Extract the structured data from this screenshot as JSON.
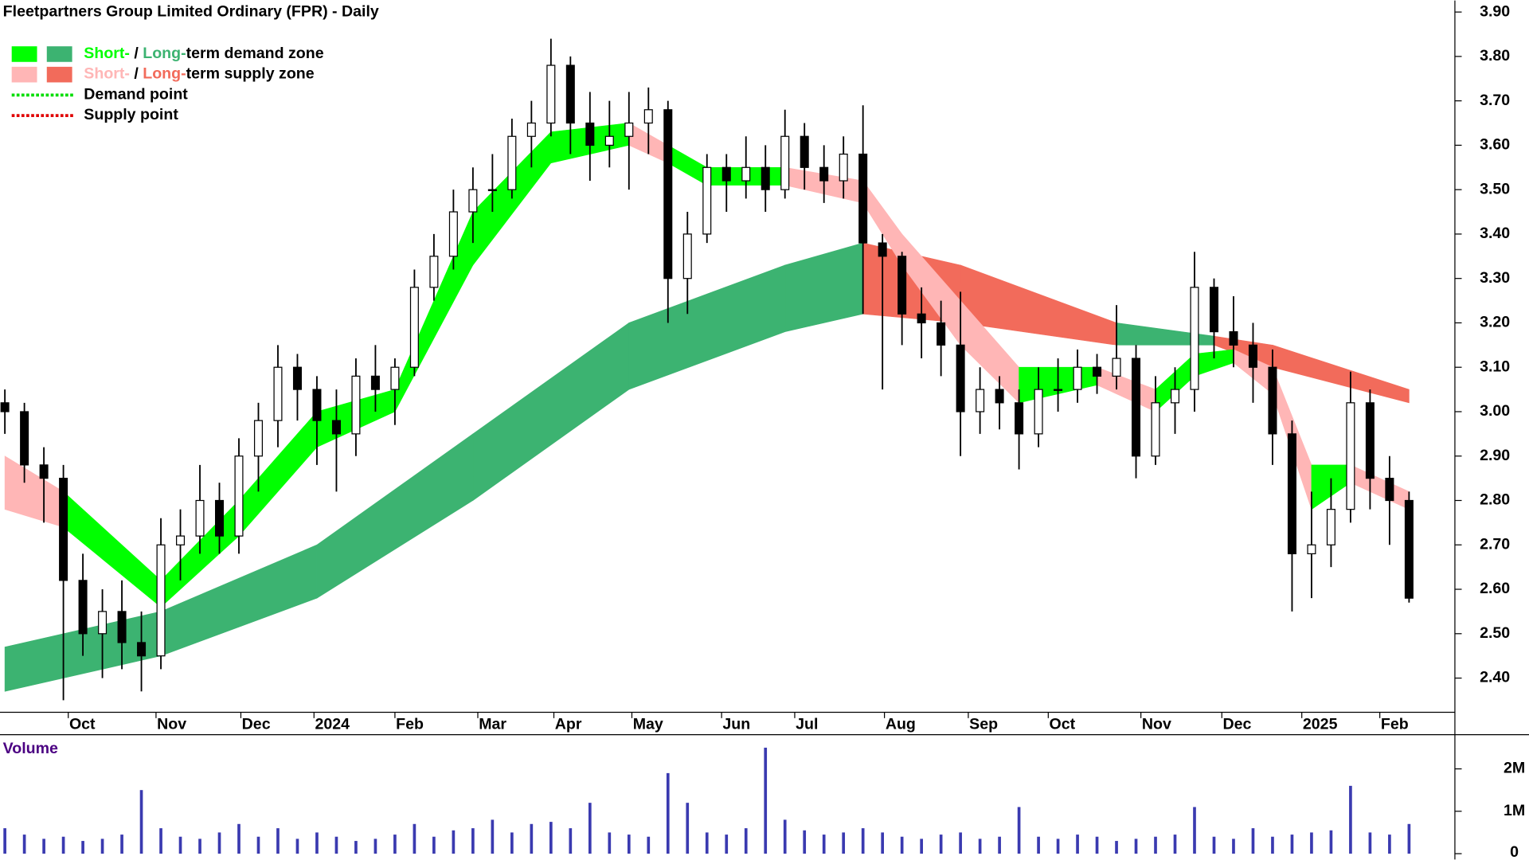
{
  "chart_data": [
    {
      "type": "candlestick",
      "title": "Fleetpartners Group Limited Ordinary (FPR) - Daily",
      "xlim": [
        -0.25,
        74.35
      ],
      "xticks": [
        {
          "value": 3.25,
          "label": "Oct"
        },
        {
          "value": 7.75,
          "label": "Nov"
        },
        {
          "value": 12.1,
          "label": "Dec"
        },
        {
          "value": 15.85,
          "label": "2024"
        },
        {
          "value": 20,
          "label": "Feb"
        },
        {
          "value": 24.25,
          "label": "Mar"
        },
        {
          "value": 28.15,
          "label": "Apr"
        },
        {
          "value": 32.15,
          "label": "May"
        },
        {
          "value": 36.75,
          "label": "Jun"
        },
        {
          "value": 40.5,
          "label": "Jul"
        },
        {
          "value": 45.1,
          "label": "Aug"
        },
        {
          "value": 49.4,
          "label": "Sep"
        },
        {
          "value": 53.5,
          "label": "Oct"
        },
        {
          "value": 58.25,
          "label": "Nov"
        },
        {
          "value": 62.4,
          "label": "Dec"
        },
        {
          "value": 66.5,
          "label": "2025"
        },
        {
          "value": 70.5,
          "label": "Feb"
        }
      ],
      "ylim": [
        2.323,
        3.926
      ],
      "yticks": [
        {
          "value": 2.4,
          "label": "2.40"
        },
        {
          "value": 2.5,
          "label": "2.50"
        },
        {
          "value": 2.6,
          "label": "2.60"
        },
        {
          "value": 2.7,
          "label": "2.70"
        },
        {
          "value": 2.8,
          "label": "2.80"
        },
        {
          "value": 2.9,
          "label": "2.90"
        },
        {
          "value": 3.0,
          "label": "3.00"
        },
        {
          "value": 3.1,
          "label": "3.10"
        },
        {
          "value": 3.2,
          "label": "3.20"
        },
        {
          "value": 3.3,
          "label": "3.30"
        },
        {
          "value": 3.4,
          "label": "3.40"
        },
        {
          "value": 3.5,
          "label": "3.50"
        },
        {
          "value": 3.6,
          "label": "3.60"
        },
        {
          "value": 3.7,
          "label": "3.70"
        },
        {
          "value": 3.8,
          "label": "3.80"
        },
        {
          "value": 3.9,
          "label": "3.90"
        }
      ],
      "open": [
        3.02,
        3.0,
        2.88,
        2.85,
        2.62,
        2.5,
        2.55,
        2.48,
        2.45,
        2.7,
        2.72,
        2.8,
        2.72,
        2.9,
        2.98,
        3.1,
        3.05,
        2.98,
        2.95,
        3.08,
        3.05,
        3.1,
        3.28,
        3.35,
        3.45,
        3.5,
        3.5,
        3.62,
        3.65,
        3.78,
        3.65,
        3.6,
        3.62,
        3.65,
        3.68,
        3.3,
        3.4,
        3.55,
        3.52,
        3.55,
        3.5,
        3.62,
        3.55,
        3.52,
        3.58,
        3.38,
        3.35,
        3.22,
        3.2,
        3.15,
        3.0,
        3.05,
        3.02,
        2.95,
        3.05,
        3.05,
        3.1,
        3.08,
        3.12,
        2.9,
        3.02,
        3.05,
        3.28,
        3.18,
        3.15,
        3.1,
        2.95,
        2.68,
        2.7,
        2.78,
        3.02,
        2.85,
        2.8
      ],
      "high": [
        3.05,
        3.02,
        2.92,
        2.88,
        2.68,
        2.6,
        2.62,
        2.55,
        2.76,
        2.78,
        2.88,
        2.84,
        2.94,
        3.02,
        3.15,
        3.13,
        3.08,
        3.05,
        3.12,
        3.15,
        3.12,
        3.32,
        3.4,
        3.5,
        3.55,
        3.58,
        3.66,
        3.7,
        3.84,
        3.8,
        3.72,
        3.7,
        3.72,
        3.73,
        3.7,
        3.45,
        3.58,
        3.58,
        3.62,
        3.6,
        3.68,
        3.65,
        3.6,
        3.62,
        3.69,
        3.4,
        3.36,
        3.28,
        3.25,
        3.27,
        3.1,
        3.08,
        3.05,
        3.1,
        3.12,
        3.14,
        3.13,
        3.24,
        3.15,
        3.08,
        3.1,
        3.36,
        3.3,
        3.26,
        3.2,
        3.14,
        2.98,
        2.82,
        2.85,
        3.09,
        3.05,
        2.9,
        2.82
      ],
      "low": [
        2.95,
        2.84,
        2.75,
        2.35,
        2.45,
        2.4,
        2.42,
        2.37,
        2.42,
        2.62,
        2.68,
        2.68,
        2.68,
        2.82,
        2.92,
        2.98,
        2.88,
        2.82,
        2.9,
        3.0,
        2.97,
        3.08,
        3.25,
        3.32,
        3.38,
        3.45,
        3.48,
        3.55,
        3.62,
        3.58,
        3.52,
        3.55,
        3.5,
        3.58,
        3.2,
        3.22,
        3.38,
        3.45,
        3.48,
        3.45,
        3.48,
        3.5,
        3.47,
        3.48,
        3.22,
        3.05,
        3.15,
        3.12,
        3.08,
        2.9,
        2.95,
        2.96,
        2.87,
        2.92,
        3.0,
        3.02,
        3.04,
        3.05,
        2.85,
        2.88,
        2.95,
        3.0,
        3.12,
        3.1,
        3.02,
        2.88,
        2.55,
        2.58,
        2.65,
        2.75,
        2.78,
        2.7,
        2.57
      ],
      "close": [
        3.0,
        2.88,
        2.85,
        2.62,
        2.5,
        2.55,
        2.48,
        2.45,
        2.7,
        2.72,
        2.8,
        2.72,
        2.9,
        2.98,
        3.1,
        3.05,
        2.98,
        2.95,
        3.08,
        3.05,
        3.1,
        3.28,
        3.35,
        3.45,
        3.5,
        3.5,
        3.62,
        3.65,
        3.78,
        3.65,
        3.6,
        3.62,
        3.65,
        3.68,
        3.3,
        3.4,
        3.55,
        3.52,
        3.55,
        3.5,
        3.62,
        3.55,
        3.52,
        3.58,
        3.38,
        3.35,
        3.22,
        3.2,
        3.15,
        3.0,
        3.05,
        3.02,
        2.95,
        3.05,
        3.05,
        3.1,
        3.08,
        3.12,
        2.9,
        3.02,
        3.05,
        3.28,
        3.18,
        3.15,
        3.1,
        2.95,
        2.68,
        2.7,
        2.78,
        3.02,
        2.85,
        2.8,
        2.58
      ],
      "long_term_zone": {
        "x": [
          0,
          8,
          16,
          24,
          32,
          40,
          44,
          49,
          57,
          62,
          65,
          72
        ],
        "upper": [
          2.47,
          2.55,
          2.7,
          2.95,
          3.2,
          3.33,
          3.38,
          3.33,
          3.2,
          3.17,
          3.15,
          3.05
        ],
        "lower": [
          2.37,
          2.45,
          2.58,
          2.8,
          3.05,
          3.18,
          3.22,
          3.2,
          3.15,
          3.15,
          3.1,
          3.02
        ]
      },
      "short_term_zone": {
        "x": [
          0,
          3,
          8,
          12,
          16,
          20,
          24,
          28,
          32,
          34,
          36,
          40,
          44,
          46,
          49,
          52,
          56,
          59,
          61,
          63,
          65,
          67,
          69,
          72
        ],
        "upper": [
          2.9,
          2.82,
          2.62,
          2.8,
          3.0,
          3.05,
          3.45,
          3.63,
          3.65,
          3.6,
          3.55,
          3.55,
          3.52,
          3.4,
          3.25,
          3.1,
          3.1,
          3.05,
          3.13,
          3.14,
          3.1,
          2.88,
          2.88,
          2.82
        ],
        "lower": [
          2.78,
          2.74,
          2.56,
          2.72,
          2.92,
          3.0,
          3.33,
          3.56,
          3.6,
          3.56,
          3.51,
          3.51,
          3.47,
          3.33,
          3.15,
          3.02,
          3.06,
          3.0,
          3.08,
          3.11,
          3.04,
          2.78,
          2.84,
          2.78
        ]
      },
      "legend": [
        {
          "parts": [
            "Short-",
            " / ",
            "Long-",
            "term demand zone"
          ],
          "colors": [
            "#00ff00",
            "#3cb371"
          ]
        },
        {
          "parts": [
            "Short-",
            " / ",
            "Long-",
            "term supply zone"
          ],
          "colors": [
            "#ffb6b6",
            "#f26b5b"
          ]
        },
        {
          "parts": [
            "Demand point"
          ],
          "colors": [
            "#00dd00"
          ]
        },
        {
          "parts": [
            "Supply point"
          ],
          "colors": [
            "#e00000"
          ]
        }
      ]
    },
    {
      "type": "bar",
      "title": "Volume",
      "color": "#3a3ab0",
      "ylim": [
        0,
        2760000
      ],
      "yticks": [
        0,
        {
          "value": 1000000,
          "label": "1M"
        },
        {
          "value": 2000000,
          "label": "2M"
        }
      ],
      "values": [
        600000,
        450000,
        350000,
        400000,
        300000,
        350000,
        450000,
        1500000,
        600000,
        400000,
        350000,
        500000,
        700000,
        400000,
        600000,
        350000,
        500000,
        400000,
        300000,
        350000,
        450000,
        700000,
        400000,
        550000,
        600000,
        800000,
        500000,
        700000,
        750000,
        600000,
        1200000,
        500000,
        450000,
        400000,
        1900000,
        1200000,
        500000,
        450000,
        600000,
        2500000,
        800000,
        550000,
        450000,
        500000,
        600000,
        500000,
        400000,
        350000,
        450000,
        500000,
        350000,
        400000,
        1100000,
        400000,
        350000,
        450000,
        400000,
        300000,
        350000,
        400000,
        450000,
        1100000,
        400000,
        350000,
        600000,
        400000,
        450000,
        500000,
        550000,
        1600000,
        500000,
        450000,
        700000
      ]
    }
  ]
}
